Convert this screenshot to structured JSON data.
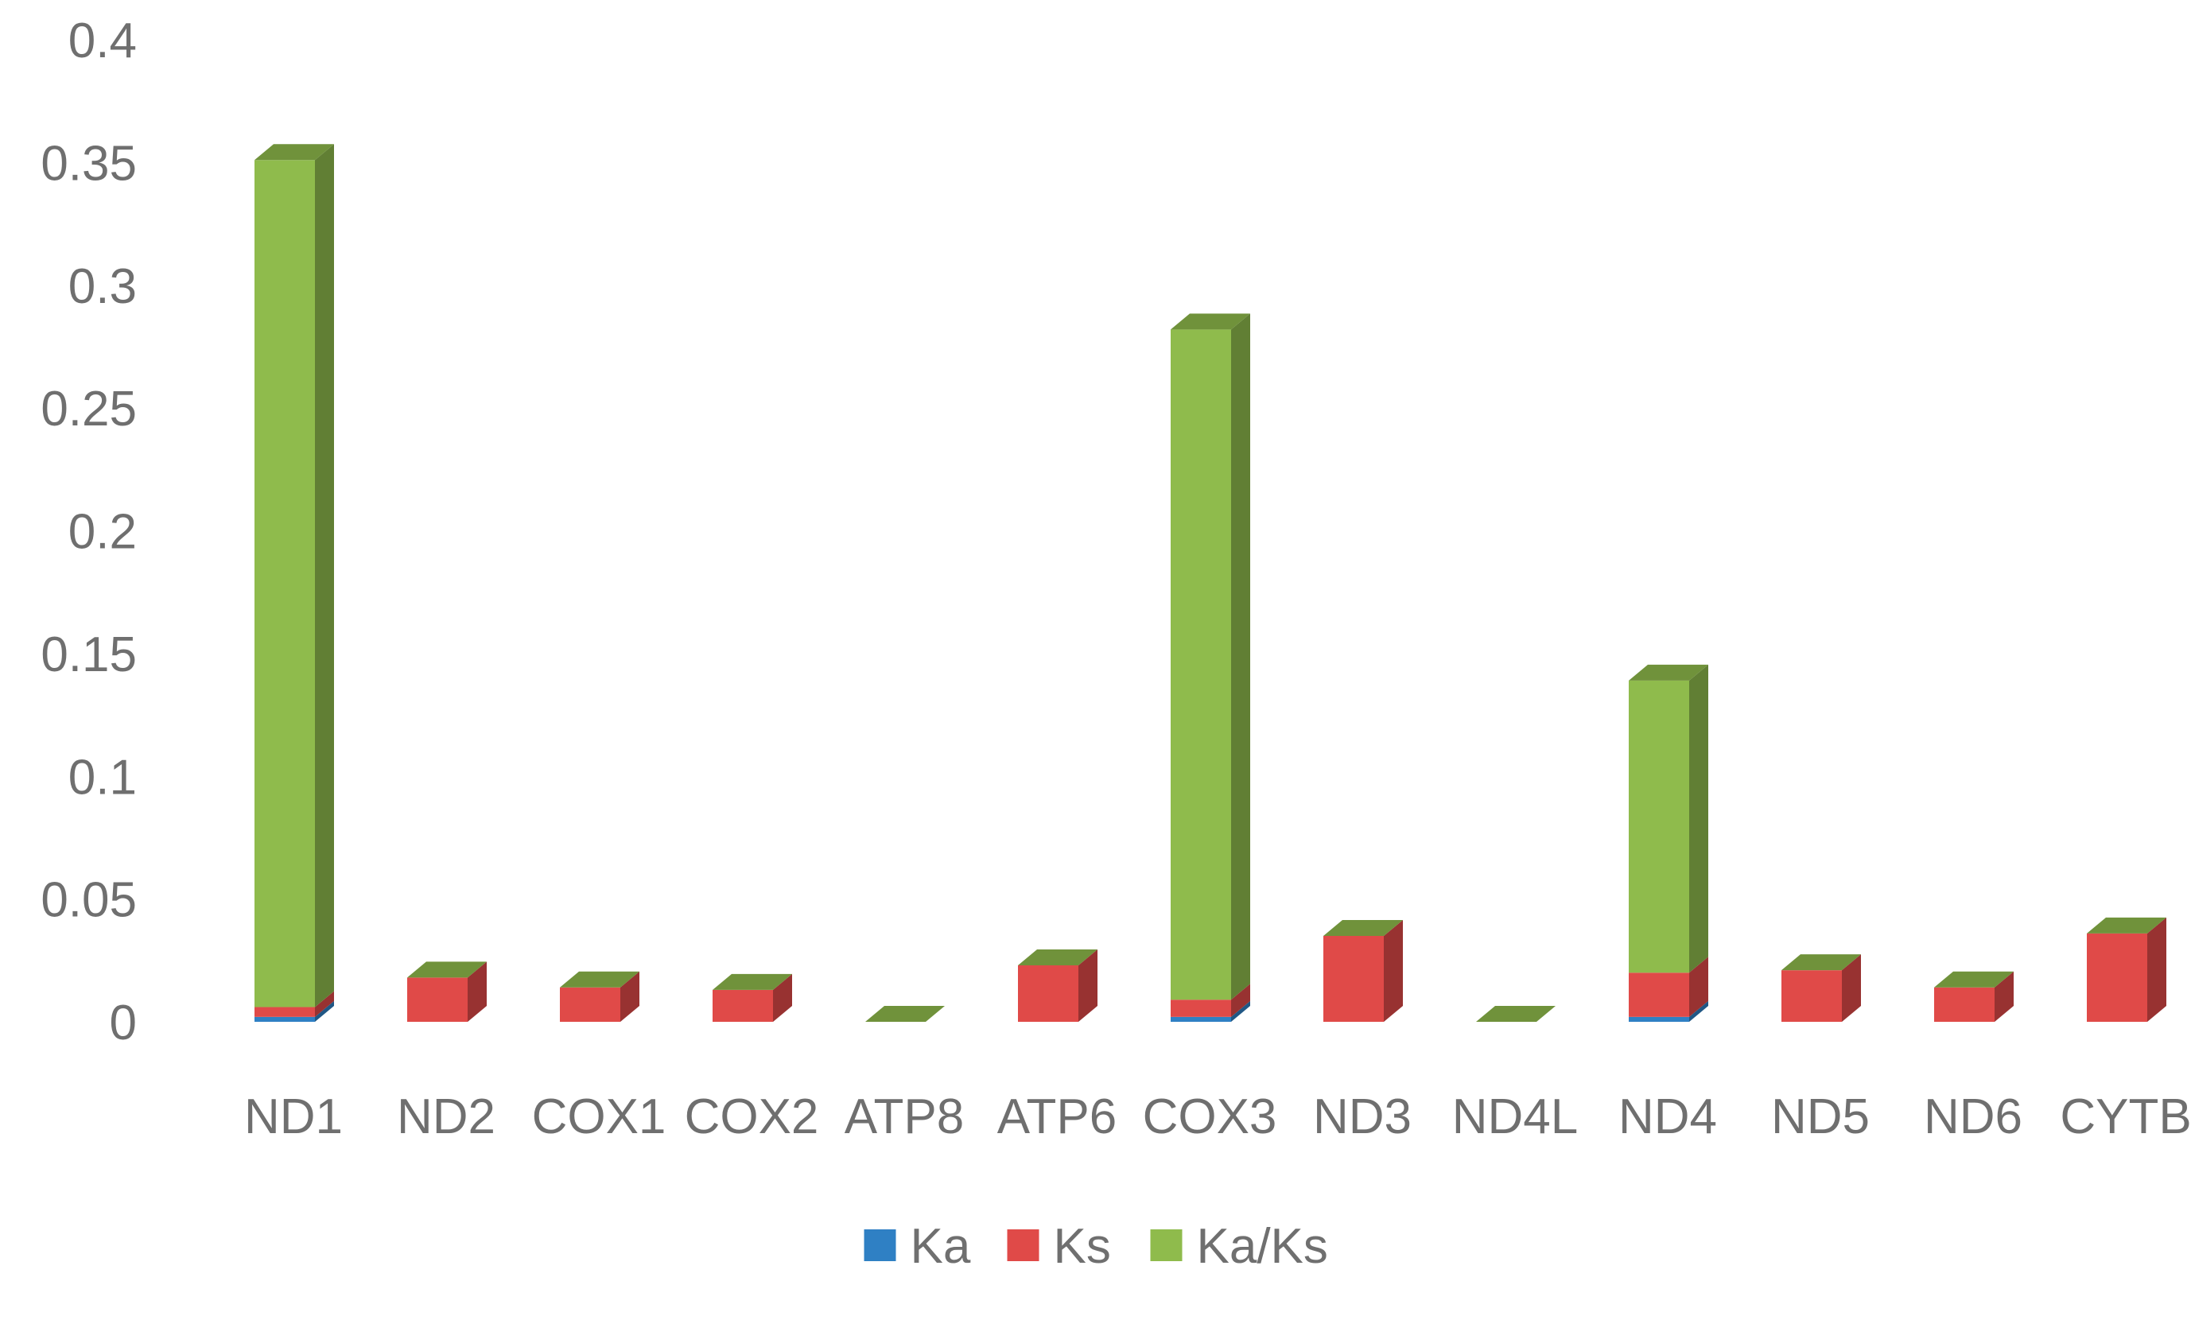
{
  "chart_data": {
    "type": "bar",
    "stacked": true,
    "style": "3d",
    "categories": [
      "ND1",
      "ND2",
      "COX1",
      "COX2",
      "ATP8",
      "ATP6",
      "COX3",
      "ND3",
      "ND4L",
      "ND4",
      "ND5",
      "ND6",
      "CYTB"
    ],
    "series": [
      {
        "name": "Ka",
        "color": "#2f80c4",
        "values": [
          0.002,
          0.0,
          0.0,
          0.0,
          0.0,
          0.0,
          0.002,
          0.0,
          0.0,
          0.002,
          0.0,
          0.0,
          0.0
        ]
      },
      {
        "name": "Ks",
        "color": "#e04a48",
        "values": [
          0.004,
          0.018,
          0.014,
          0.013,
          0.0,
          0.023,
          0.007,
          0.035,
          0.0,
          0.018,
          0.021,
          0.014,
          0.036
        ]
      },
      {
        "name": "Ka/Ks",
        "color": "#8fbb4c",
        "values": [
          0.345,
          0.0,
          0.0,
          0.0,
          0.0,
          0.0,
          0.273,
          0.0,
          0.0,
          0.119,
          0.0,
          0.0,
          0.0
        ]
      }
    ],
    "yticks": [
      "0",
      "0.05",
      "0.1",
      "0.15",
      "0.2",
      "0.25",
      "0.3",
      "0.35",
      "0.4"
    ],
    "ylim": [
      0,
      0.4
    ],
    "legend_position": "bottom",
    "grid": false,
    "title": "",
    "xlabel": "",
    "ylabel": ""
  }
}
